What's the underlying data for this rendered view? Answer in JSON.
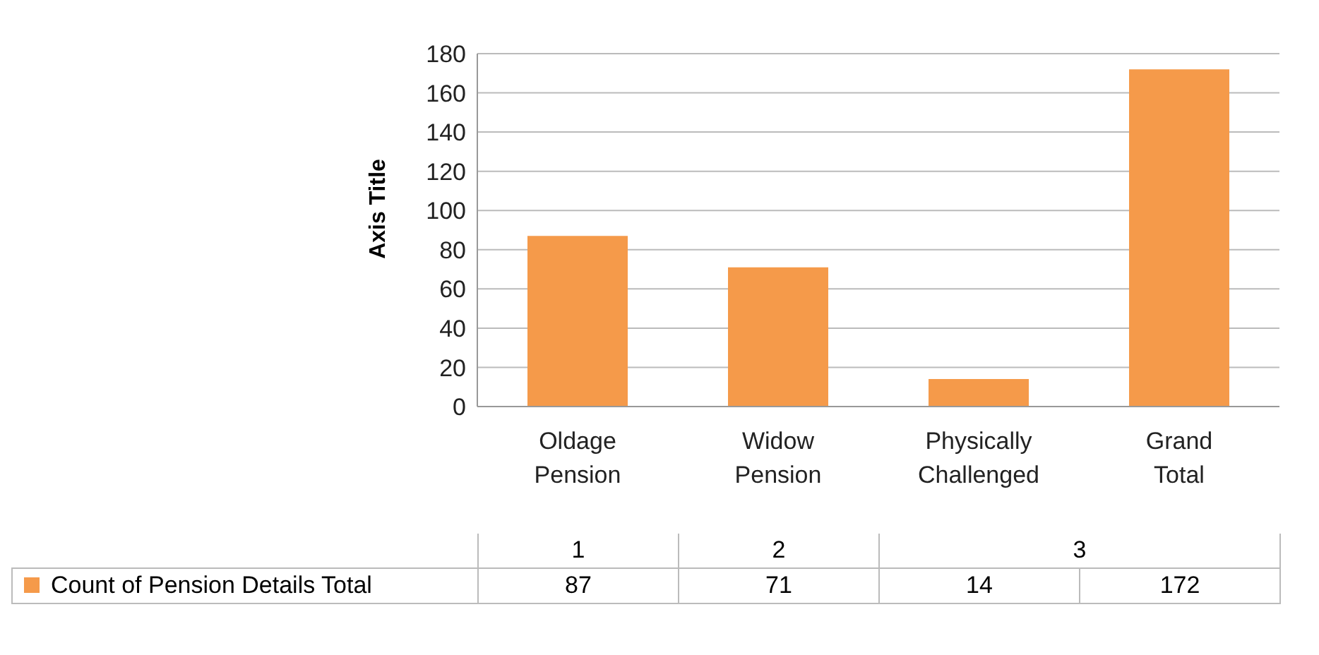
{
  "chart_data": {
    "type": "bar",
    "ylabel": "Axis Title",
    "categories": [
      "Oldage Pension",
      "Widow Pension",
      "Physically Challenged",
      "Grand Total"
    ],
    "series": [
      {
        "name": "Count of Pension Details Total",
        "color": "#f59a4a",
        "values": [
          87,
          71,
          14,
          172
        ]
      }
    ],
    "ylim": [
      0,
      180
    ],
    "yticks": [
      0,
      20,
      40,
      60,
      80,
      100,
      120,
      140,
      160,
      180
    ],
    "grid": "y",
    "data_labels": true,
    "legend": "bottom",
    "annotations": [
      "1",
      "2",
      "3"
    ]
  }
}
